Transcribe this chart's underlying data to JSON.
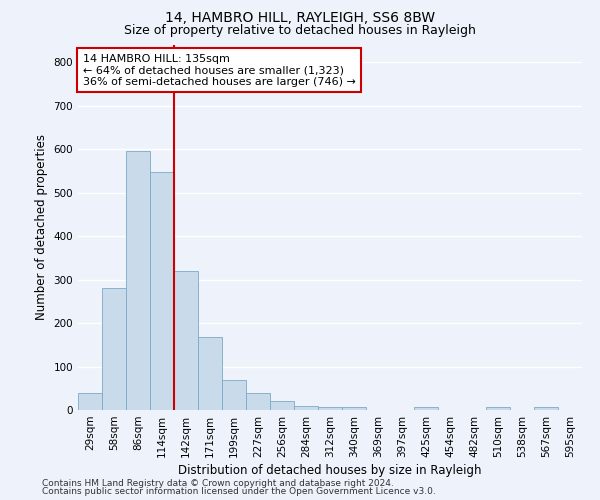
{
  "title_line1": "14, HAMBRO HILL, RAYLEIGH, SS6 8BW",
  "title_line2": "Size of property relative to detached houses in Rayleigh",
  "xlabel": "Distribution of detached houses by size in Rayleigh",
  "ylabel": "Number of detached properties",
  "footer_line1": "Contains HM Land Registry data © Crown copyright and database right 2024.",
  "footer_line2": "Contains public sector information licensed under the Open Government Licence v3.0.",
  "categories": [
    "29sqm",
    "58sqm",
    "86sqm",
    "114sqm",
    "142sqm",
    "171sqm",
    "199sqm",
    "227sqm",
    "256sqm",
    "284sqm",
    "312sqm",
    "340sqm",
    "369sqm",
    "397sqm",
    "425sqm",
    "454sqm",
    "482sqm",
    "510sqm",
    "538sqm",
    "567sqm",
    "595sqm"
  ],
  "values": [
    38,
    280,
    595,
    548,
    320,
    168,
    70,
    38,
    20,
    10,
    8,
    8,
    0,
    0,
    8,
    0,
    0,
    8,
    0,
    8,
    0
  ],
  "bar_color": "#c9daea",
  "bar_edge_color": "#7aaac8",
  "vline_color": "#cc0000",
  "vline_x": 3.5,
  "annotation_text": "14 HAMBRO HILL: 135sqm\n← 64% of detached houses are smaller (1,323)\n36% of semi-detached houses are larger (746) →",
  "annotation_box_color": "#ffffff",
  "annotation_box_edge_color": "#cc0000",
  "ylim": [
    0,
    840
  ],
  "yticks": [
    0,
    100,
    200,
    300,
    400,
    500,
    600,
    700,
    800
  ],
  "background_color": "#eef2fa",
  "grid_color": "#ffffff",
  "title_fontsize": 10,
  "subtitle_fontsize": 9,
  "axis_label_fontsize": 8.5,
  "tick_fontsize": 7.5,
  "annotation_fontsize": 8,
  "footer_fontsize": 6.5
}
